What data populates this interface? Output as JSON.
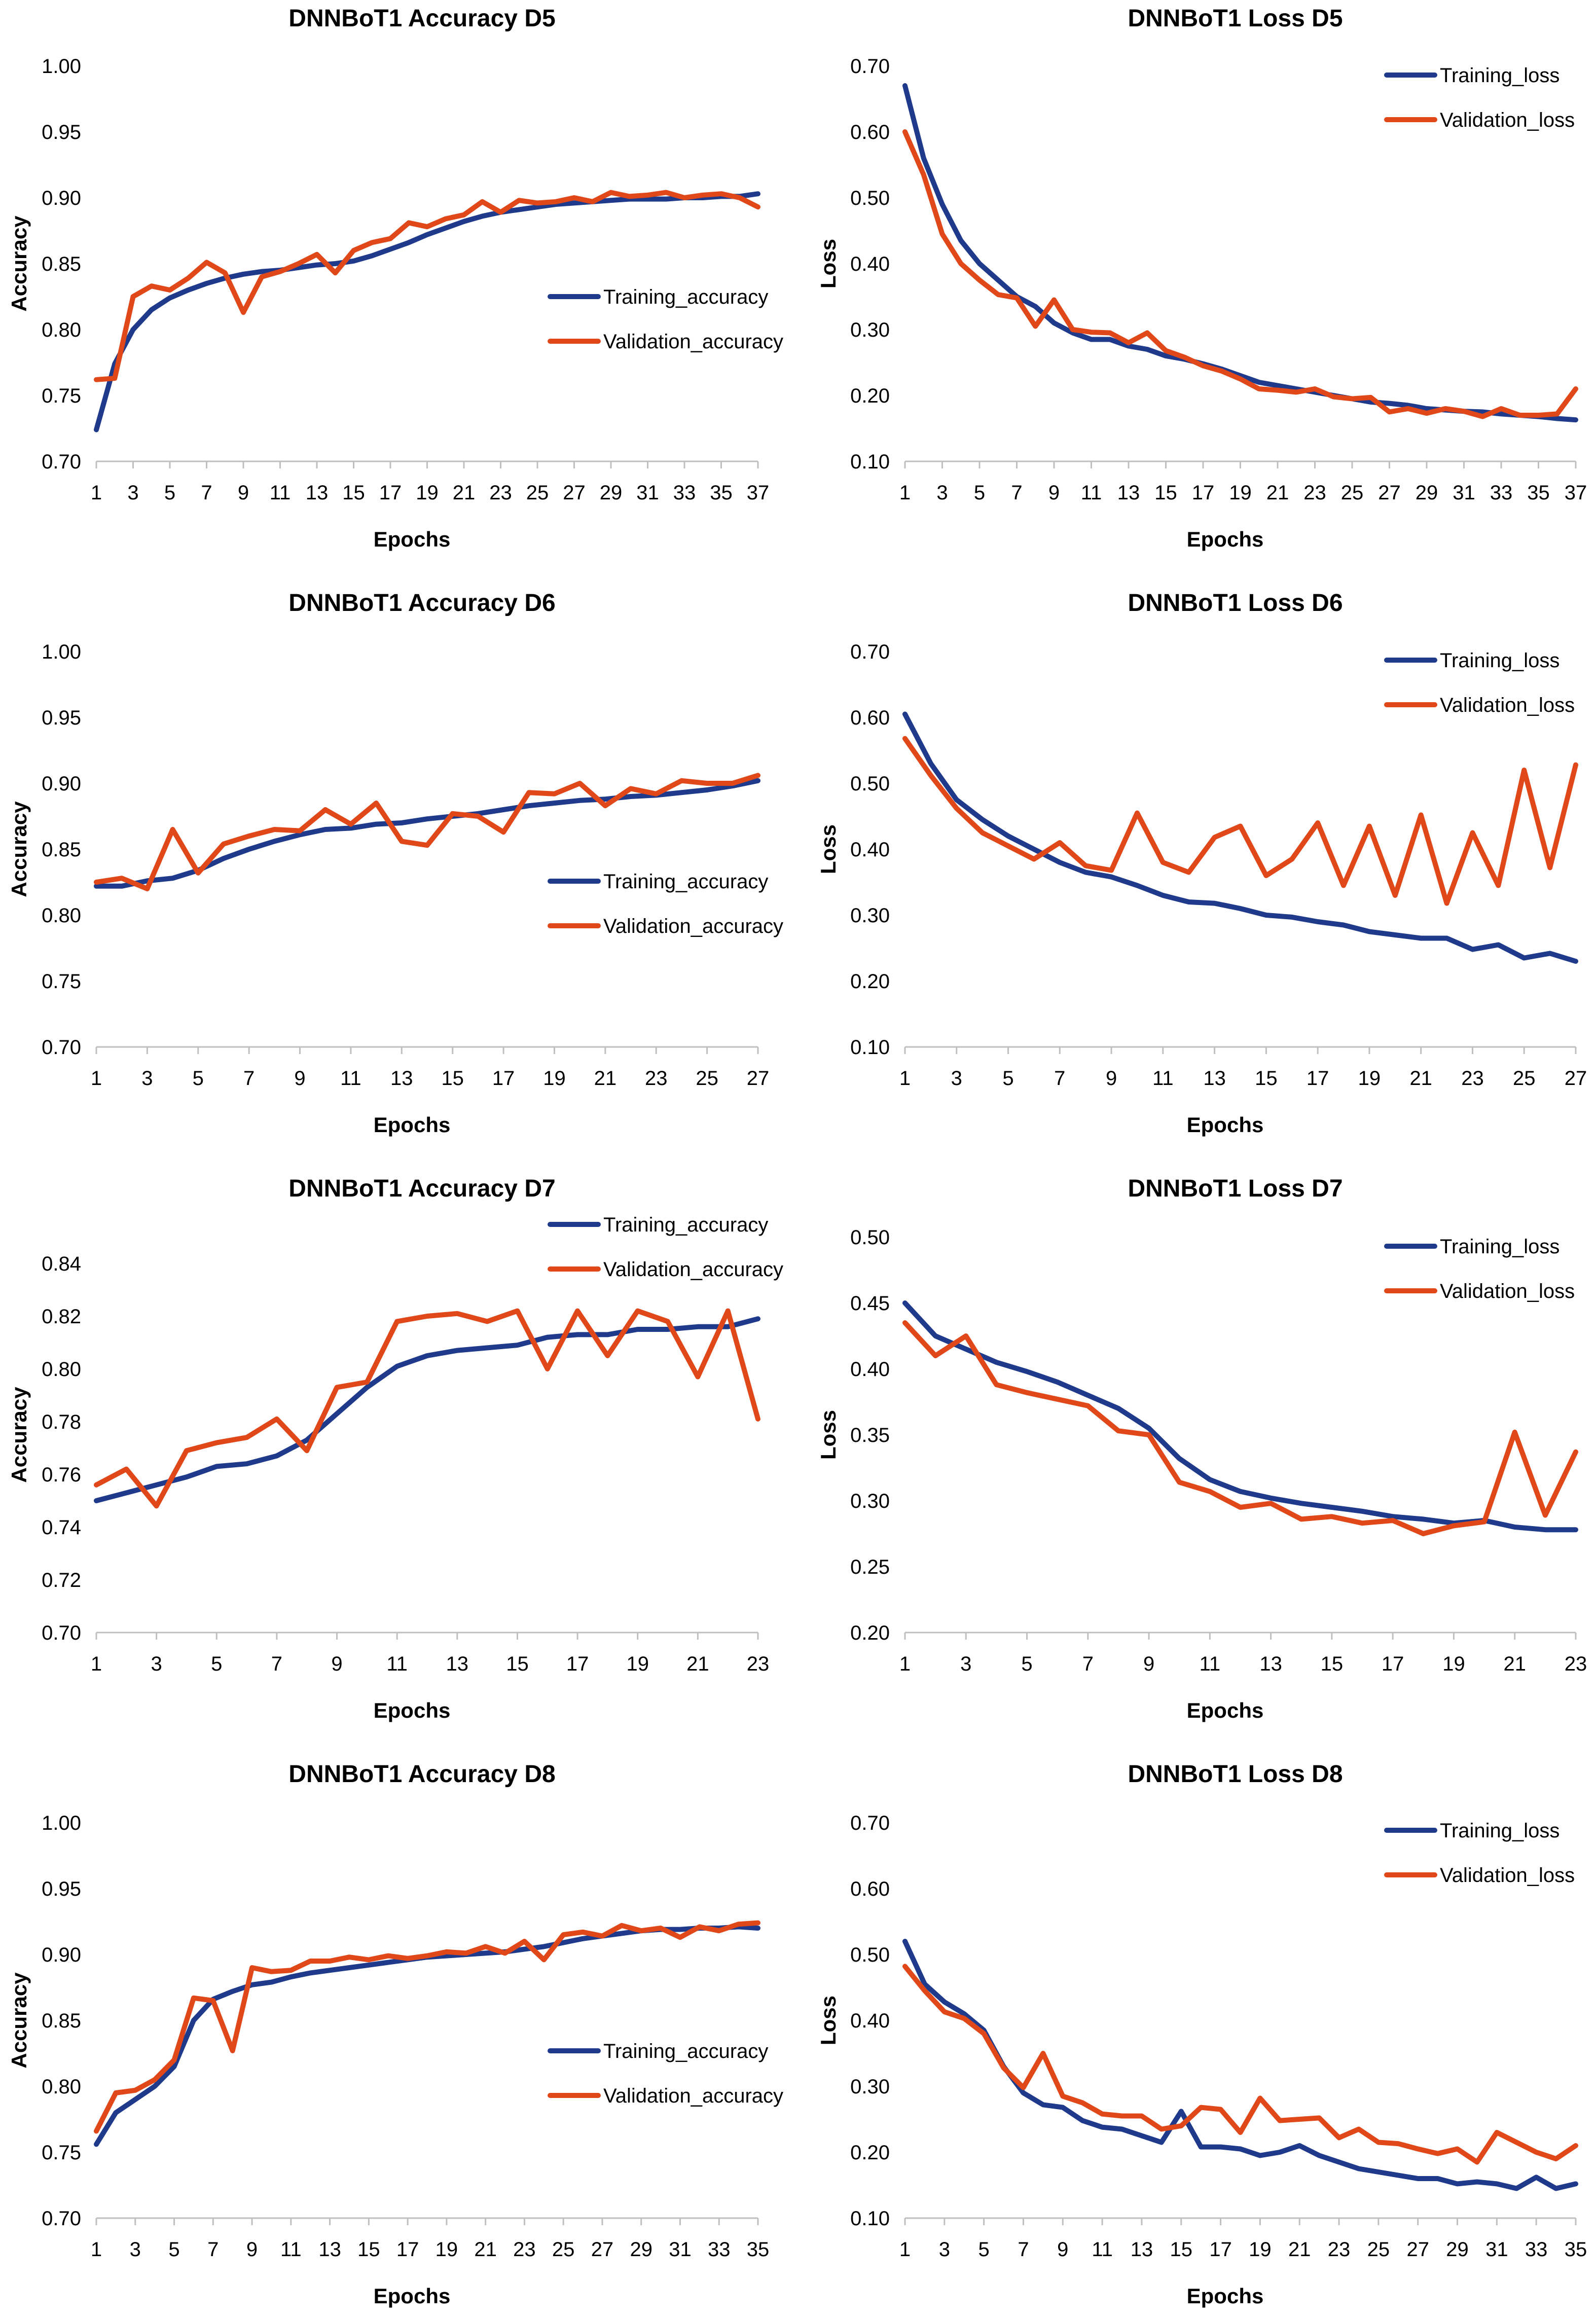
{
  "colors": {
    "training": "#1f3a8a",
    "validation": "#e0481a",
    "axis": "#bfbfbf"
  },
  "chart_data": [
    {
      "type": "line",
      "title": "DNNBoT1 Accuracy D5",
      "xlabel": "Epochs",
      "ylabel": "Accuracy",
      "xticks": [
        "1",
        "3",
        "5",
        "7",
        "9",
        "11",
        "13",
        "15",
        "17",
        "19",
        "21",
        "23",
        "25",
        "27",
        "29",
        "31",
        "33",
        "35",
        "37"
      ],
      "yticks": [
        "0.70",
        "0.75",
        "0.80",
        "0.85",
        "0.90",
        "0.95",
        "1.00"
      ],
      "ylim": [
        0.7,
        1.0
      ],
      "n_epochs": 37,
      "legend": "center-right",
      "series": [
        {
          "name": "Training_accuracy",
          "values": [
            0.724,
            0.774,
            0.8,
            0.815,
            0.824,
            0.83,
            0.835,
            0.839,
            0.842,
            0.844,
            0.845,
            0.847,
            0.849,
            0.85,
            0.852,
            0.856,
            0.861,
            0.866,
            0.872,
            0.877,
            0.882,
            0.886,
            0.889,
            0.891,
            0.893,
            0.895,
            0.896,
            0.897,
            0.898,
            0.899,
            0.899,
            0.899,
            0.9,
            0.9,
            0.901,
            0.901,
            0.903
          ]
        },
        {
          "name": "Validation_accuracy",
          "values": [
            0.762,
            0.763,
            0.825,
            0.833,
            0.83,
            0.839,
            0.851,
            0.843,
            0.813,
            0.84,
            0.844,
            0.85,
            0.857,
            0.843,
            0.86,
            0.866,
            0.869,
            0.881,
            0.878,
            0.884,
            0.887,
            0.897,
            0.889,
            0.898,
            0.896,
            0.897,
            0.9,
            0.897,
            0.904,
            0.901,
            0.902,
            0.904,
            0.9,
            0.902,
            0.903,
            0.9,
            0.893
          ]
        }
      ]
    },
    {
      "type": "line",
      "title": "DNNBoT1 Loss D5",
      "xlabel": "Epochs",
      "ylabel": "Loss",
      "xticks": [
        "1",
        "3",
        "5",
        "7",
        "9",
        "11",
        "13",
        "15",
        "17",
        "19",
        "21",
        "23",
        "25",
        "27",
        "29",
        "31",
        "33",
        "35",
        "37"
      ],
      "yticks": [
        "0.10",
        "0.20",
        "0.30",
        "0.40",
        "0.50",
        "0.60",
        "0.70"
      ],
      "ylim": [
        0.1,
        0.7
      ],
      "n_epochs": 37,
      "legend": "top-right",
      "series": [
        {
          "name": "Training_loss",
          "values": [
            0.67,
            0.56,
            0.49,
            0.435,
            0.4,
            0.375,
            0.35,
            0.335,
            0.31,
            0.295,
            0.285,
            0.285,
            0.275,
            0.27,
            0.26,
            0.255,
            0.248,
            0.24,
            0.23,
            0.22,
            0.215,
            0.21,
            0.205,
            0.2,
            0.195,
            0.19,
            0.188,
            0.185,
            0.18,
            0.178,
            0.176,
            0.175,
            0.172,
            0.17,
            0.168,
            0.165,
            0.163
          ]
        },
        {
          "name": "Validation_loss",
          "values": [
            0.6,
            0.535,
            0.445,
            0.4,
            0.375,
            0.353,
            0.348,
            0.305,
            0.345,
            0.3,
            0.296,
            0.295,
            0.28,
            0.295,
            0.268,
            0.258,
            0.245,
            0.237,
            0.225,
            0.21,
            0.208,
            0.205,
            0.21,
            0.198,
            0.195,
            0.197,
            0.175,
            0.18,
            0.173,
            0.18,
            0.176,
            0.168,
            0.18,
            0.17,
            0.17,
            0.172,
            0.21
          ]
        }
      ]
    },
    {
      "type": "line",
      "title": "DNNBoT1 Accuracy D6",
      "xlabel": "Epochs",
      "ylabel": "Accuracy",
      "xticks": [
        "1",
        "3",
        "5",
        "7",
        "9",
        "11",
        "13",
        "15",
        "17",
        "19",
        "21",
        "23",
        "25",
        "27"
      ],
      "yticks": [
        "0.70",
        "0.75",
        "0.80",
        "0.85",
        "0.90",
        "0.95",
        "1.00"
      ],
      "ylim": [
        0.7,
        1.0
      ],
      "n_epochs": 27,
      "legend": "center-right",
      "series": [
        {
          "name": "Training_accuracy",
          "values": [
            0.822,
            0.822,
            0.826,
            0.828,
            0.834,
            0.843,
            0.85,
            0.856,
            0.861,
            0.865,
            0.866,
            0.869,
            0.87,
            0.873,
            0.875,
            0.877,
            0.88,
            0.883,
            0.885,
            0.887,
            0.888,
            0.89,
            0.891,
            0.893,
            0.895,
            0.898,
            0.902
          ]
        },
        {
          "name": "Validation_accuracy",
          "values": [
            0.825,
            0.828,
            0.82,
            0.865,
            0.832,
            0.854,
            0.86,
            0.865,
            0.864,
            0.88,
            0.869,
            0.885,
            0.856,
            0.853,
            0.877,
            0.875,
            0.863,
            0.893,
            0.892,
            0.9,
            0.883,
            0.896,
            0.892,
            0.902,
            0.9,
            0.9,
            0.906
          ]
        }
      ]
    },
    {
      "type": "line",
      "title": "DNNBoT1 Loss D6",
      "xlabel": "Epochs",
      "ylabel": "Loss",
      "xticks": [
        "1",
        "3",
        "5",
        "7",
        "9",
        "11",
        "13",
        "15",
        "17",
        "19",
        "21",
        "23",
        "25",
        "27"
      ],
      "yticks": [
        "0.10",
        "0.20",
        "0.30",
        "0.40",
        "0.50",
        "0.60",
        "0.70"
      ],
      "ylim": [
        0.1,
        0.7
      ],
      "n_epochs": 27,
      "legend": "top-right",
      "series": [
        {
          "name": "Training_loss",
          "values": [
            0.605,
            0.53,
            0.475,
            0.445,
            0.42,
            0.4,
            0.38,
            0.365,
            0.358,
            0.345,
            0.33,
            0.32,
            0.318,
            0.31,
            0.3,
            0.297,
            0.29,
            0.285,
            0.275,
            0.27,
            0.265,
            0.265,
            0.248,
            0.255,
            0.235,
            0.242,
            0.23
          ]
        },
        {
          "name": "Validation_loss",
          "values": [
            0.568,
            0.512,
            0.462,
            0.425,
            0.405,
            0.385,
            0.41,
            0.375,
            0.368,
            0.455,
            0.38,
            0.365,
            0.418,
            0.435,
            0.36,
            0.385,
            0.44,
            0.345,
            0.435,
            0.33,
            0.452,
            0.318,
            0.425,
            0.345,
            0.52,
            0.372,
            0.528
          ]
        }
      ]
    },
    {
      "type": "line",
      "title": "DNNBoT1 Accuracy D7",
      "xlabel": "Epochs",
      "ylabel": "Accuracy",
      "xticks": [
        "1",
        "3",
        "5",
        "7",
        "9",
        "11",
        "13",
        "15",
        "17",
        "19",
        "21",
        "23"
      ],
      "yticks": [
        "0.70",
        "0.72",
        "0.74",
        "0.76",
        "0.78",
        "0.80",
        "0.82",
        "0.84"
      ],
      "ylim": [
        0.7,
        0.85
      ],
      "n_epochs": 23,
      "legend": "top-right",
      "series": [
        {
          "name": "Training_accuracy",
          "values": [
            0.75,
            0.753,
            0.756,
            0.759,
            0.763,
            0.764,
            0.767,
            0.773,
            0.783,
            0.793,
            0.801,
            0.805,
            0.807,
            0.808,
            0.809,
            0.812,
            0.813,
            0.813,
            0.815,
            0.815,
            0.816,
            0.816,
            0.819
          ]
        },
        {
          "name": "Validation_accuracy",
          "values": [
            0.756,
            0.762,
            0.748,
            0.769,
            0.772,
            0.774,
            0.781,
            0.769,
            0.793,
            0.795,
            0.818,
            0.82,
            0.821,
            0.818,
            0.822,
            0.8,
            0.822,
            0.805,
            0.822,
            0.818,
            0.797,
            0.822,
            0.781
          ]
        }
      ]
    },
    {
      "type": "line",
      "title": "DNNBoT1 Loss D7",
      "xlabel": "Epochs",
      "ylabel": "Loss",
      "xticks": [
        "1",
        "3",
        "5",
        "7",
        "9",
        "11",
        "13",
        "15",
        "17",
        "19",
        "21",
        "23"
      ],
      "yticks": [
        "0.20",
        "0.25",
        "0.30",
        "0.35",
        "0.40",
        "0.45",
        "0.50"
      ],
      "ylim": [
        0.2,
        0.5
      ],
      "n_epochs": 23,
      "legend": "top-right",
      "series": [
        {
          "name": "Training_loss",
          "values": [
            0.45,
            0.425,
            0.415,
            0.405,
            0.398,
            0.39,
            0.38,
            0.37,
            0.355,
            0.332,
            0.316,
            0.307,
            0.302,
            0.298,
            0.295,
            0.292,
            0.288,
            0.286,
            0.283,
            0.285,
            0.28,
            0.278,
            0.278
          ]
        },
        {
          "name": "Validation_loss",
          "values": [
            0.435,
            0.41,
            0.425,
            0.388,
            0.382,
            0.377,
            0.372,
            0.353,
            0.35,
            0.314,
            0.307,
            0.295,
            0.298,
            0.286,
            0.288,
            0.283,
            0.285,
            0.275,
            0.281,
            0.284,
            0.352,
            0.289,
            0.337
          ]
        }
      ]
    },
    {
      "type": "line",
      "title": "DNNBoT1 Accuracy D8",
      "xlabel": "Epochs",
      "ylabel": "Accuracy",
      "xticks": [
        "1",
        "3",
        "5",
        "7",
        "9",
        "11",
        "13",
        "15",
        "17",
        "19",
        "21",
        "23",
        "25",
        "27",
        "29",
        "31",
        "33",
        "35"
      ],
      "yticks": [
        "0.70",
        "0.75",
        "0.80",
        "0.85",
        "0.90",
        "0.95",
        "1.00"
      ],
      "ylim": [
        0.7,
        1.0
      ],
      "n_epochs": 35,
      "legend": "center-right",
      "series": [
        {
          "name": "Training_accuracy",
          "values": [
            0.756,
            0.78,
            0.79,
            0.8,
            0.815,
            0.85,
            0.866,
            0.872,
            0.877,
            0.879,
            0.883,
            0.886,
            0.888,
            0.89,
            0.892,
            0.894,
            0.896,
            0.898,
            0.899,
            0.9,
            0.901,
            0.902,
            0.904,
            0.906,
            0.909,
            0.912,
            0.914,
            0.916,
            0.918,
            0.919,
            0.919,
            0.92,
            0.92,
            0.921,
            0.92
          ]
        },
        {
          "name": "Validation_accuracy",
          "values": [
            0.766,
            0.795,
            0.797,
            0.805,
            0.82,
            0.867,
            0.865,
            0.827,
            0.89,
            0.887,
            0.888,
            0.895,
            0.895,
            0.898,
            0.896,
            0.899,
            0.897,
            0.899,
            0.902,
            0.901,
            0.906,
            0.901,
            0.91,
            0.896,
            0.915,
            0.917,
            0.914,
            0.922,
            0.918,
            0.92,
            0.913,
            0.921,
            0.918,
            0.923,
            0.924
          ]
        }
      ]
    },
    {
      "type": "line",
      "title": "DNNBoT1 Loss D8",
      "xlabel": "Epochs",
      "ylabel": "Loss",
      "xticks": [
        "1",
        "3",
        "5",
        "7",
        "9",
        "11",
        "13",
        "15",
        "17",
        "19",
        "21",
        "23",
        "25",
        "27",
        "29",
        "31",
        "33",
        "35"
      ],
      "yticks": [
        "0.10",
        "0.20",
        "0.30",
        "0.40",
        "0.50",
        "0.60",
        "0.70"
      ],
      "ylim": [
        0.1,
        0.7
      ],
      "n_epochs": 35,
      "legend": "top-right",
      "series": [
        {
          "name": "Training_loss",
          "values": [
            0.52,
            0.455,
            0.428,
            0.41,
            0.385,
            0.33,
            0.29,
            0.272,
            0.268,
            0.248,
            0.238,
            0.235,
            0.225,
            0.215,
            0.262,
            0.208,
            0.208,
            0.205,
            0.195,
            0.2,
            0.21,
            0.195,
            0.185,
            0.175,
            0.17,
            0.165,
            0.16,
            0.16,
            0.152,
            0.155,
            0.152,
            0.145,
            0.162,
            0.145,
            0.152
          ]
        },
        {
          "name": "Validation_loss",
          "values": [
            0.482,
            0.445,
            0.413,
            0.403,
            0.38,
            0.328,
            0.298,
            0.35,
            0.285,
            0.275,
            0.258,
            0.255,
            0.255,
            0.235,
            0.24,
            0.268,
            0.265,
            0.23,
            0.282,
            0.248,
            0.25,
            0.252,
            0.222,
            0.235,
            0.215,
            0.213,
            0.205,
            0.198,
            0.205,
            0.185,
            0.23,
            0.215,
            0.2,
            0.19,
            0.21
          ]
        }
      ]
    }
  ]
}
